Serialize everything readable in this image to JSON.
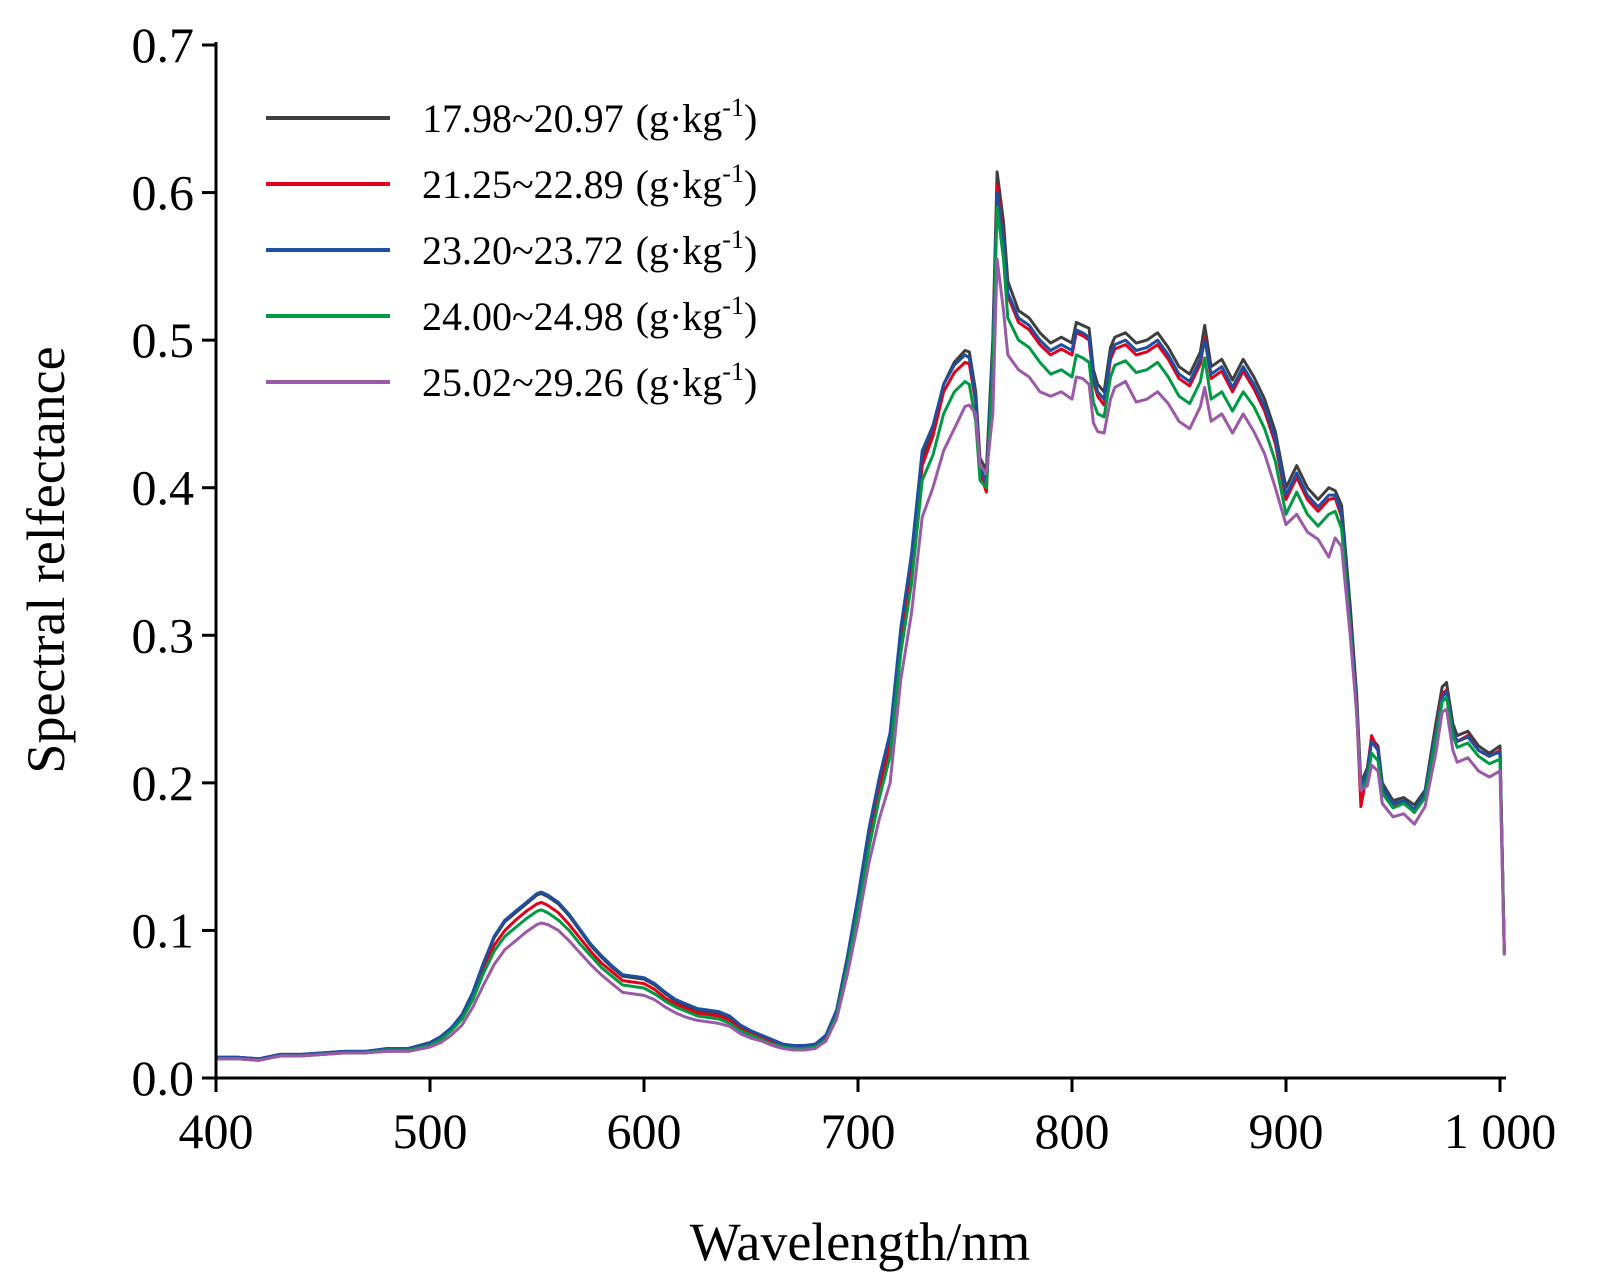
{
  "chart_data": {
    "type": "line",
    "xlabel": "Wavelength/nm",
    "ylabel": "Spectral relfectance",
    "xlim": [
      400,
      1000
    ],
    "ylim": [
      0,
      0.7
    ],
    "xticks": [
      {
        "value": 400,
        "label": "400"
      },
      {
        "value": 500,
        "label": "500"
      },
      {
        "value": 600,
        "label": "600"
      },
      {
        "value": 700,
        "label": "700"
      },
      {
        "value": 800,
        "label": "800"
      },
      {
        "value": 900,
        "label": "900"
      },
      {
        "value": 1000,
        "label": "1 000"
      }
    ],
    "yticks": [
      {
        "value": 0,
        "label": "0.0"
      },
      {
        "value": 0.1,
        "label": "0.1"
      },
      {
        "value": 0.2,
        "label": "0.2"
      },
      {
        "value": 0.3,
        "label": "0.3"
      },
      {
        "value": 0.4,
        "label": "0.4"
      },
      {
        "value": 0.5,
        "label": "0.5"
      },
      {
        "value": 0.6,
        "label": "0.6"
      },
      {
        "value": 0.7,
        "label": "0.7"
      }
    ],
    "grid": false,
    "legend_position": "top-left",
    "legend_unit": "(g·kg",
    "legend_unit_sup": "-1",
    "legend_unit_close": ")",
    "x": [
      400,
      410,
      420,
      430,
      440,
      450,
      460,
      470,
      480,
      490,
      500,
      505,
      510,
      515,
      520,
      525,
      530,
      535,
      540,
      545,
      550,
      552,
      555,
      560,
      565,
      570,
      575,
      580,
      585,
      590,
      595,
      600,
      605,
      610,
      615,
      620,
      625,
      630,
      635,
      640,
      645,
      650,
      655,
      660,
      665,
      670,
      675,
      680,
      685,
      690,
      695,
      700,
      705,
      710,
      715,
      720,
      725,
      730,
      735,
      740,
      745,
      750,
      752,
      755,
      757,
      760,
      763,
      765,
      768,
      770,
      775,
      780,
      785,
      790,
      795,
      800,
      802,
      805,
      808,
      810,
      812,
      815,
      818,
      820,
      825,
      830,
      835,
      840,
      845,
      850,
      855,
      860,
      862,
      865,
      870,
      875,
      880,
      885,
      890,
      895,
      900,
      905,
      910,
      915,
      920,
      923,
      926,
      930,
      933,
      935,
      938,
      940,
      943,
      945,
      950,
      955,
      960,
      965,
      970,
      973,
      975,
      978,
      980,
      985,
      990,
      995,
      1000,
      1002
    ],
    "series": [
      {
        "name": "17.98~20.97",
        "color": "#3f3f3f",
        "values": [
          0.014,
          0.014,
          0.013,
          0.016,
          0.016,
          0.017,
          0.018,
          0.018,
          0.02,
          0.02,
          0.024,
          0.028,
          0.034,
          0.043,
          0.058,
          0.078,
          0.095,
          0.106,
          0.112,
          0.118,
          0.124,
          0.125,
          0.123,
          0.118,
          0.11,
          0.1,
          0.09,
          0.082,
          0.075,
          0.069,
          0.068,
          0.067,
          0.063,
          0.057,
          0.052,
          0.049,
          0.046,
          0.045,
          0.044,
          0.041,
          0.035,
          0.031,
          0.028,
          0.025,
          0.022,
          0.021,
          0.021,
          0.022,
          0.028,
          0.045,
          0.08,
          0.12,
          0.165,
          0.2,
          0.23,
          0.3,
          0.35,
          0.42,
          0.44,
          0.47,
          0.485,
          0.493,
          0.492,
          0.465,
          0.42,
          0.412,
          0.5,
          0.614,
          0.58,
          0.54,
          0.52,
          0.515,
          0.505,
          0.498,
          0.502,
          0.498,
          0.512,
          0.51,
          0.508,
          0.48,
          0.47,
          0.465,
          0.495,
          0.502,
          0.505,
          0.498,
          0.5,
          0.505,
          0.495,
          0.482,
          0.477,
          0.492,
          0.51,
          0.482,
          0.487,
          0.473,
          0.487,
          0.475,
          0.46,
          0.438,
          0.4,
          0.415,
          0.4,
          0.392,
          0.4,
          0.398,
          0.388,
          0.32,
          0.26,
          0.2,
          0.21,
          0.23,
          0.225,
          0.2,
          0.188,
          0.19,
          0.185,
          0.195,
          0.24,
          0.265,
          0.268,
          0.24,
          0.232,
          0.235,
          0.225,
          0.22,
          0.225,
          0.085
        ]
      },
      {
        "name": "21.25~22.89",
        "color": "#e3001b",
        "values": [
          0.013,
          0.013,
          0.012,
          0.015,
          0.015,
          0.016,
          0.017,
          0.017,
          0.019,
          0.019,
          0.023,
          0.027,
          0.033,
          0.041,
          0.055,
          0.074,
          0.09,
          0.1,
          0.107,
          0.113,
          0.118,
          0.119,
          0.117,
          0.112,
          0.104,
          0.095,
          0.086,
          0.078,
          0.072,
          0.066,
          0.065,
          0.064,
          0.06,
          0.054,
          0.05,
          0.047,
          0.044,
          0.043,
          0.042,
          0.039,
          0.033,
          0.03,
          0.027,
          0.024,
          0.021,
          0.02,
          0.02,
          0.021,
          0.027,
          0.044,
          0.078,
          0.118,
          0.162,
          0.196,
          0.226,
          0.296,
          0.345,
          0.415,
          0.435,
          0.465,
          0.478,
          0.485,
          0.484,
          0.458,
          0.41,
          0.397,
          0.49,
          0.605,
          0.57,
          0.53,
          0.512,
          0.507,
          0.497,
          0.49,
          0.494,
          0.49,
          0.505,
          0.503,
          0.5,
          0.472,
          0.462,
          0.456,
          0.487,
          0.494,
          0.497,
          0.49,
          0.492,
          0.497,
          0.487,
          0.474,
          0.469,
          0.484,
          0.502,
          0.474,
          0.479,
          0.465,
          0.479,
          0.467,
          0.452,
          0.43,
          0.392,
          0.407,
          0.392,
          0.384,
          0.392,
          0.393,
          0.38,
          0.31,
          0.25,
          0.184,
          0.208,
          0.232,
          0.222,
          0.195,
          0.185,
          0.188,
          0.18,
          0.192,
          0.236,
          0.26,
          0.263,
          0.236,
          0.228,
          0.232,
          0.222,
          0.218,
          0.222,
          0.085
        ]
      },
      {
        "name": "23.20~23.72",
        "color": "#1f4fa0",
        "values": [
          0.014,
          0.014,
          0.013,
          0.016,
          0.016,
          0.017,
          0.018,
          0.018,
          0.02,
          0.02,
          0.024,
          0.028,
          0.034,
          0.043,
          0.058,
          0.078,
          0.096,
          0.107,
          0.113,
          0.119,
          0.125,
          0.126,
          0.124,
          0.119,
          0.111,
          0.101,
          0.091,
          0.083,
          0.076,
          0.07,
          0.069,
          0.068,
          0.064,
          0.058,
          0.053,
          0.05,
          0.047,
          0.046,
          0.045,
          0.042,
          0.036,
          0.032,
          0.029,
          0.026,
          0.023,
          0.022,
          0.022,
          0.023,
          0.029,
          0.046,
          0.082,
          0.123,
          0.168,
          0.204,
          0.234,
          0.305,
          0.355,
          0.425,
          0.442,
          0.47,
          0.483,
          0.49,
          0.488,
          0.46,
          0.415,
          0.403,
          0.495,
          0.6,
          0.568,
          0.532,
          0.515,
          0.51,
          0.5,
          0.493,
          0.497,
          0.493,
          0.507,
          0.505,
          0.502,
          0.475,
          0.465,
          0.46,
          0.49,
          0.497,
          0.5,
          0.493,
          0.495,
          0.5,
          0.49,
          0.477,
          0.472,
          0.487,
          0.5,
          0.477,
          0.482,
          0.468,
          0.482,
          0.47,
          0.455,
          0.433,
          0.395,
          0.41,
          0.395,
          0.387,
          0.395,
          0.395,
          0.383,
          0.31,
          0.255,
          0.195,
          0.208,
          0.228,
          0.222,
          0.197,
          0.186,
          0.188,
          0.182,
          0.193,
          0.235,
          0.258,
          0.262,
          0.236,
          0.228,
          0.231,
          0.222,
          0.218,
          0.221,
          0.085
        ]
      },
      {
        "name": "24.00~24.98",
        "color": "#009a44",
        "values": [
          0.013,
          0.013,
          0.012,
          0.015,
          0.015,
          0.016,
          0.017,
          0.017,
          0.019,
          0.019,
          0.022,
          0.026,
          0.032,
          0.04,
          0.053,
          0.071,
          0.086,
          0.096,
          0.102,
          0.108,
          0.113,
          0.114,
          0.112,
          0.107,
          0.1,
          0.091,
          0.083,
          0.075,
          0.069,
          0.063,
          0.062,
          0.061,
          0.057,
          0.052,
          0.048,
          0.045,
          0.042,
          0.041,
          0.04,
          0.037,
          0.032,
          0.029,
          0.026,
          0.023,
          0.021,
          0.02,
          0.02,
          0.021,
          0.026,
          0.042,
          0.075,
          0.113,
          0.155,
          0.19,
          0.218,
          0.288,
          0.335,
          0.405,
          0.422,
          0.45,
          0.465,
          0.472,
          0.47,
          0.445,
          0.405,
          0.4,
          0.48,
          0.59,
          0.555,
          0.515,
          0.5,
          0.495,
          0.485,
          0.477,
          0.48,
          0.475,
          0.49,
          0.488,
          0.485,
          0.458,
          0.45,
          0.448,
          0.475,
          0.483,
          0.486,
          0.478,
          0.48,
          0.485,
          0.475,
          0.462,
          0.457,
          0.472,
          0.488,
          0.46,
          0.465,
          0.452,
          0.465,
          0.455,
          0.44,
          0.418,
          0.382,
          0.397,
          0.382,
          0.374,
          0.382,
          0.384,
          0.372,
          0.305,
          0.248,
          0.195,
          0.202,
          0.22,
          0.215,
          0.193,
          0.183,
          0.186,
          0.18,
          0.19,
          0.23,
          0.255,
          0.258,
          0.232,
          0.224,
          0.227,
          0.218,
          0.213,
          0.216,
          0.085
        ]
      },
      {
        "name": "25.02~29.26",
        "color": "#9a5aa8",
        "values": [
          0.013,
          0.013,
          0.012,
          0.015,
          0.015,
          0.016,
          0.017,
          0.017,
          0.018,
          0.018,
          0.021,
          0.024,
          0.029,
          0.036,
          0.048,
          0.063,
          0.077,
          0.087,
          0.093,
          0.099,
          0.104,
          0.105,
          0.104,
          0.1,
          0.093,
          0.085,
          0.077,
          0.07,
          0.064,
          0.058,
          0.057,
          0.056,
          0.053,
          0.048,
          0.044,
          0.041,
          0.039,
          0.038,
          0.037,
          0.035,
          0.03,
          0.027,
          0.025,
          0.022,
          0.02,
          0.019,
          0.019,
          0.02,
          0.025,
          0.04,
          0.07,
          0.105,
          0.145,
          0.176,
          0.2,
          0.27,
          0.315,
          0.38,
          0.4,
          0.425,
          0.44,
          0.455,
          0.456,
          0.45,
          0.415,
          0.41,
          0.45,
          0.555,
          0.52,
          0.49,
          0.48,
          0.475,
          0.465,
          0.462,
          0.465,
          0.46,
          0.475,
          0.474,
          0.47,
          0.444,
          0.438,
          0.437,
          0.46,
          0.468,
          0.472,
          0.458,
          0.46,
          0.465,
          0.457,
          0.445,
          0.44,
          0.455,
          0.468,
          0.445,
          0.45,
          0.437,
          0.45,
          0.438,
          0.423,
          0.4,
          0.375,
          0.382,
          0.37,
          0.365,
          0.353,
          0.366,
          0.36,
          0.3,
          0.248,
          0.195,
          0.198,
          0.212,
          0.208,
          0.186,
          0.177,
          0.179,
          0.172,
          0.184,
          0.22,
          0.248,
          0.25,
          0.222,
          0.214,
          0.217,
          0.208,
          0.204,
          0.208,
          0.083
        ]
      }
    ]
  }
}
